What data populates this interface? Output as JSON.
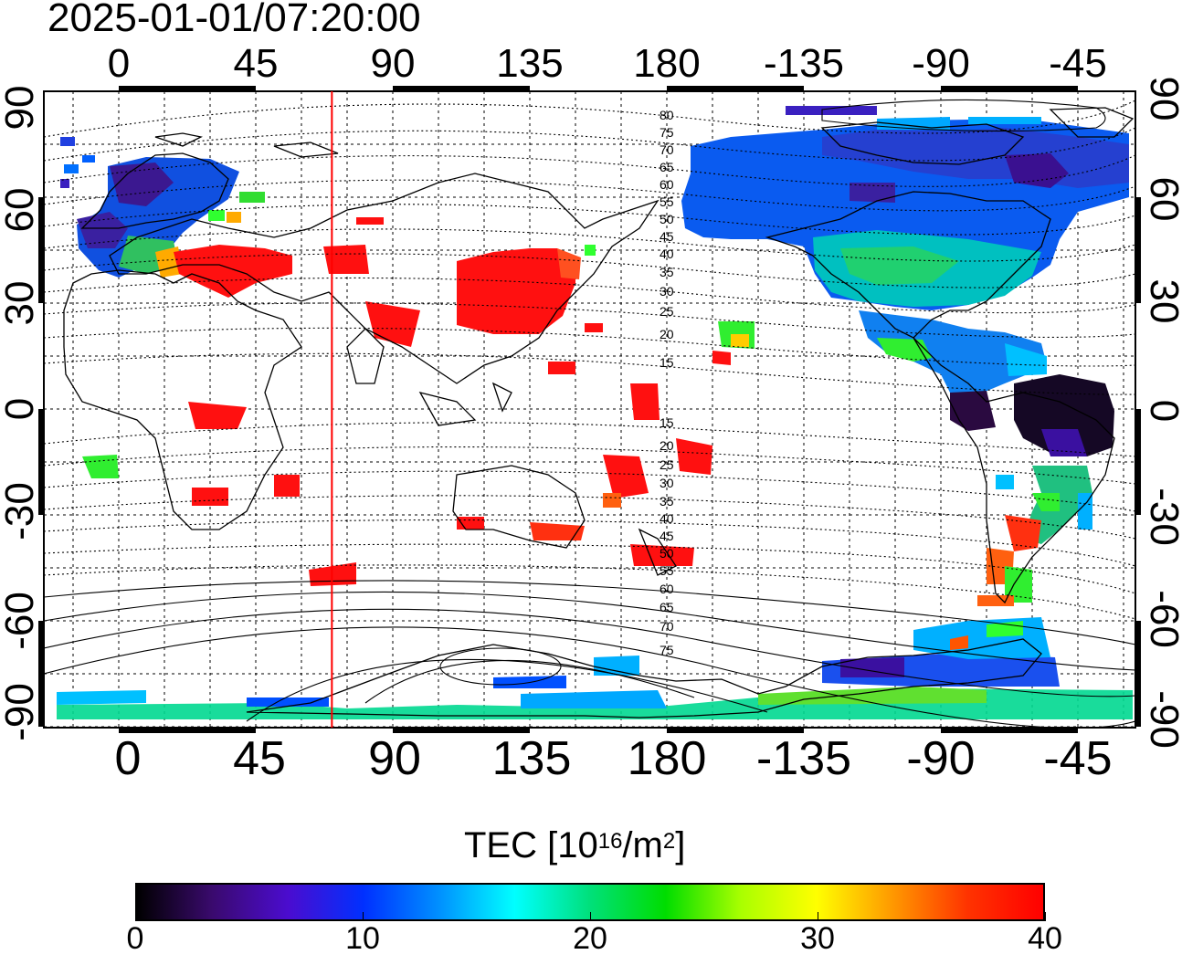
{
  "title": "2025-01-01/07:20:00",
  "map": {
    "lon_ticks": [
      "0",
      "45",
      "90",
      "135",
      "180",
      "-135",
      "-90",
      "-45"
    ],
    "lat_ticks_left": [
      "90",
      "60",
      "30",
      "0",
      "-30",
      "-60",
      "-90"
    ],
    "lat_ticks_right": [
      "90",
      "60",
      "30",
      "0",
      "-30",
      "-60",
      "-90"
    ],
    "contour_labels_north": [
      "80",
      "75",
      "70",
      "65",
      "60",
      "55",
      "50",
      "45",
      "40",
      "35",
      "30",
      "25",
      "20",
      "15"
    ],
    "contour_labels_south": [
      "15",
      "20",
      "25",
      "30",
      "35",
      "40",
      "45",
      "50",
      "55",
      "60",
      "65",
      "70",
      "75"
    ],
    "meridian_marker_lon": 70
  },
  "colorbar": {
    "label_main": "TEC  [10",
    "label_exp1": "16",
    "label_mid": "/m",
    "label_exp2": "2",
    "label_end": "]",
    "ticks": [
      "0",
      "10",
      "20",
      "30",
      "40"
    ],
    "min": 0,
    "max": 40,
    "colors": [
      "#000000",
      "#3a0a6e",
      "#4b0ccf",
      "#0030ff",
      "#0090ff",
      "#00ffff",
      "#00e07a",
      "#00dd00",
      "#aaff00",
      "#ffff00",
      "#ff9900",
      "#ff3300",
      "#ff0000"
    ]
  }
}
